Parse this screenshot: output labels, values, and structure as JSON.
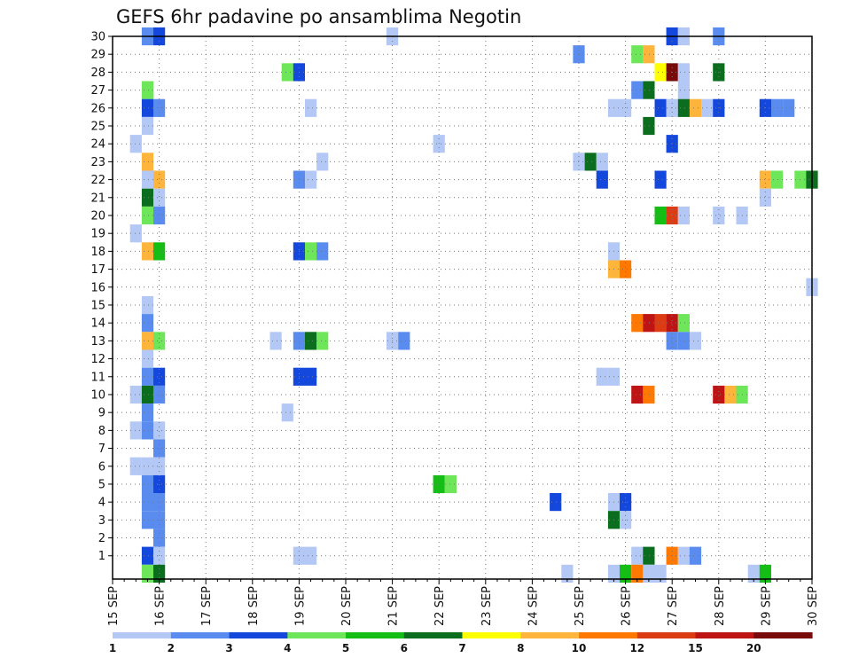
{
  "chart_data": {
    "type": "heatmap",
    "title": "GEFS 6hr padavine po ansamblima Negotin",
    "x_tick_labels": [
      "15 SEP",
      "16 SEP",
      "17 SEP",
      "18 SEP",
      "19 SEP",
      "20 SEP",
      "21 SEP",
      "22 SEP",
      "23 SEP",
      "24 SEP",
      "25 SEP",
      "26 SEP",
      "27 SEP",
      "28 SEP",
      "29 SEP",
      "30 SEP"
    ],
    "y_tick_labels": [
      "1",
      "2",
      "3",
      "4",
      "5",
      "6",
      "7",
      "8",
      "9",
      "10",
      "11",
      "12",
      "13",
      "14",
      "15",
      "16",
      "17",
      "18",
      "19",
      "20",
      "21",
      "22",
      "23",
      "24",
      "25",
      "26",
      "27",
      "28",
      "29",
      "30"
    ],
    "xlim_days": [
      15,
      30
    ],
    "ylim_members": [
      0,
      30
    ],
    "grid": "dotted",
    "legend": {
      "placement": "bottom",
      "labels": [
        "1",
        "2",
        "3",
        "4",
        "5",
        "6",
        "7",
        "8",
        "10",
        "12",
        "15",
        "20"
      ],
      "colors": [
        "#b4c8f5",
        "#5a8cf0",
        "#1448dc",
        "#6ee65a",
        "#14be14",
        "#0a6e1e",
        "#ffff00",
        "#ffb43c",
        "#ff7800",
        "#dc3c14",
        "#be1414",
        "#780a0a"
      ]
    },
    "colors": [
      "#b4c8f5",
      "#5a8cf0",
      "#1448dc",
      "#6ee65a",
      "#14be14",
      "#0a6e1e",
      "#ffff00",
      "#ffb43c",
      "#ff7800",
      "#dc3c14",
      "#be1414",
      "#780a0a"
    ],
    "cells_note_fields": [
      "day",
      "member",
      "precip_mm"
    ],
    "cells": [
      [
        15.75,
        30,
        2
      ],
      [
        16.0,
        30,
        3
      ],
      [
        21.0,
        30,
        1
      ],
      [
        27.0,
        30,
        3
      ],
      [
        27.25,
        30,
        1
      ],
      [
        28.0,
        30,
        2
      ],
      [
        25.0,
        29,
        2
      ],
      [
        26.25,
        29,
        4
      ],
      [
        26.5,
        29,
        9
      ],
      [
        18.75,
        28,
        4
      ],
      [
        19.0,
        28,
        3
      ],
      [
        26.75,
        28,
        7
      ],
      [
        27.0,
        28,
        20
      ],
      [
        27.25,
        28,
        1
      ],
      [
        28.0,
        28,
        6
      ],
      [
        15.75,
        27,
        4
      ],
      [
        26.25,
        27,
        2
      ],
      [
        26.5,
        27,
        6
      ],
      [
        27.25,
        27,
        1
      ],
      [
        15.75,
        26,
        3
      ],
      [
        16.0,
        26,
        2
      ],
      [
        19.25,
        26,
        1
      ],
      [
        25.75,
        26,
        1
      ],
      [
        26.0,
        26,
        1
      ],
      [
        26.75,
        26,
        3
      ],
      [
        27.0,
        26,
        1
      ],
      [
        27.25,
        26,
        6
      ],
      [
        27.5,
        26,
        9
      ],
      [
        27.75,
        26,
        1
      ],
      [
        28.0,
        26,
        3
      ],
      [
        29.0,
        26,
        3
      ],
      [
        29.25,
        26,
        2
      ],
      [
        29.5,
        26,
        2
      ],
      [
        15.75,
        25,
        1
      ],
      [
        26.5,
        25,
        6
      ],
      [
        15.5,
        24,
        1
      ],
      [
        22.0,
        24,
        1
      ],
      [
        27.0,
        24,
        3
      ],
      [
        15.75,
        23,
        9
      ],
      [
        19.5,
        23,
        1
      ],
      [
        25.0,
        23,
        1
      ],
      [
        25.25,
        23,
        6
      ],
      [
        25.5,
        23,
        1
      ],
      [
        15.75,
        22,
        1
      ],
      [
        16.0,
        22,
        9
      ],
      [
        19.0,
        22,
        2
      ],
      [
        19.25,
        22,
        1
      ],
      [
        25.5,
        22,
        3
      ],
      [
        26.75,
        22,
        3
      ],
      [
        29.0,
        22,
        9
      ],
      [
        29.25,
        22,
        4
      ],
      [
        29.75,
        22,
        4
      ],
      [
        30.0,
        22,
        6
      ],
      [
        15.75,
        21,
        6
      ],
      [
        16.0,
        21,
        1
      ],
      [
        29.0,
        21,
        1
      ],
      [
        15.75,
        20,
        4
      ],
      [
        16.0,
        20,
        2
      ],
      [
        26.75,
        20,
        5
      ],
      [
        27.0,
        20,
        12
      ],
      [
        27.25,
        20,
        1
      ],
      [
        28.0,
        20,
        1
      ],
      [
        28.5,
        20,
        1
      ],
      [
        15.5,
        19,
        1
      ],
      [
        15.75,
        18,
        9
      ],
      [
        16.0,
        18,
        5
      ],
      [
        19.0,
        18,
        3
      ],
      [
        19.25,
        18,
        4
      ],
      [
        19.5,
        18,
        2
      ],
      [
        25.75,
        18,
        1
      ],
      [
        25.75,
        17,
        8
      ],
      [
        26.0,
        17,
        10
      ],
      [
        30.0,
        16,
        1
      ],
      [
        15.75,
        15,
        1
      ],
      [
        15.75,
        14,
        2
      ],
      [
        26.25,
        14,
        10
      ],
      [
        26.5,
        14,
        15
      ],
      [
        26.75,
        14,
        12
      ],
      [
        27.0,
        14,
        15
      ],
      [
        27.25,
        14,
        4
      ],
      [
        15.75,
        13,
        8
      ],
      [
        16.0,
        13,
        4
      ],
      [
        18.5,
        13,
        1
      ],
      [
        19.0,
        13,
        2
      ],
      [
        19.25,
        13,
        6
      ],
      [
        19.5,
        13,
        4
      ],
      [
        21.0,
        13,
        1
      ],
      [
        21.25,
        13,
        2
      ],
      [
        27.0,
        13,
        2
      ],
      [
        27.25,
        13,
        2
      ],
      [
        27.5,
        13,
        1
      ],
      [
        15.75,
        12,
        1
      ],
      [
        15.75,
        11,
        2
      ],
      [
        16.0,
        11,
        3
      ],
      [
        19.0,
        11,
        3
      ],
      [
        19.25,
        11,
        3
      ],
      [
        25.5,
        11,
        1
      ],
      [
        25.75,
        11,
        1
      ],
      [
        15.5,
        10,
        1
      ],
      [
        15.75,
        10,
        6
      ],
      [
        16.0,
        10,
        2
      ],
      [
        26.25,
        10,
        15
      ],
      [
        26.5,
        10,
        10
      ],
      [
        28.0,
        10,
        15
      ],
      [
        28.25,
        10,
        8
      ],
      [
        28.5,
        10,
        4
      ],
      [
        15.75,
        9,
        2
      ],
      [
        18.75,
        9,
        1
      ],
      [
        15.5,
        8,
        1
      ],
      [
        15.75,
        8,
        2
      ],
      [
        16.0,
        8,
        1
      ],
      [
        16.0,
        7,
        2
      ],
      [
        15.5,
        6,
        1
      ],
      [
        15.75,
        6,
        1
      ],
      [
        16.0,
        6,
        1
      ],
      [
        15.75,
        5,
        2
      ],
      [
        16.0,
        5,
        3
      ],
      [
        22.0,
        5,
        5
      ],
      [
        22.25,
        5,
        4
      ],
      [
        15.75,
        4,
        2
      ],
      [
        16.0,
        4,
        2
      ],
      [
        24.5,
        4,
        3
      ],
      [
        25.75,
        4,
        1
      ],
      [
        26.0,
        4,
        3
      ],
      [
        15.75,
        3,
        2
      ],
      [
        16.0,
        3,
        2
      ],
      [
        25.75,
        3,
        6
      ],
      [
        26.0,
        3,
        1
      ],
      [
        16.0,
        2,
        2
      ],
      [
        15.75,
        1,
        3
      ],
      [
        16.0,
        1,
        1
      ],
      [
        19.0,
        1,
        1
      ],
      [
        19.25,
        1,
        1
      ],
      [
        26.25,
        1,
        1
      ],
      [
        26.5,
        1,
        6
      ],
      [
        27.0,
        1,
        10
      ],
      [
        27.25,
        1,
        1
      ],
      [
        27.5,
        1,
        2
      ],
      [
        15.75,
        0,
        4
      ],
      [
        16.0,
        0,
        6
      ],
      [
        24.75,
        0,
        1
      ],
      [
        25.75,
        0,
        1
      ],
      [
        26.0,
        0,
        5
      ],
      [
        26.25,
        0,
        10
      ],
      [
        26.5,
        0,
        1
      ],
      [
        26.75,
        0,
        1
      ],
      [
        28.75,
        0,
        1
      ],
      [
        29.0,
        0,
        5
      ]
    ]
  }
}
